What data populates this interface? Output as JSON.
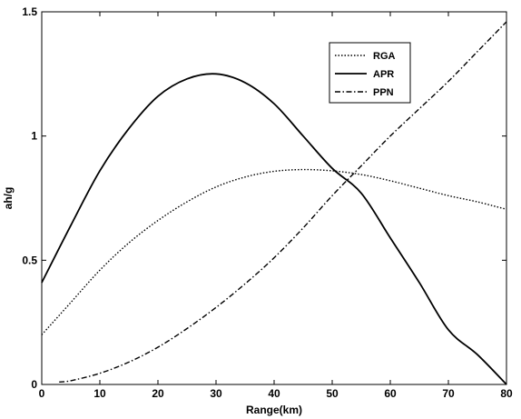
{
  "chart_data": {
    "type": "line",
    "title": "",
    "xlabel": "Range(km)",
    "ylabel": "ah/g",
    "xlim": [
      0,
      80
    ],
    "ylim": [
      0,
      1.5
    ],
    "xticks": [
      "0",
      "10",
      "20",
      "30",
      "40",
      "50",
      "60",
      "70",
      "80"
    ],
    "yticks": [
      "0",
      "0.5",
      "1",
      "1.5"
    ],
    "grid": false,
    "legend_position": "top-right",
    "series": [
      {
        "name": "RGA",
        "style": "dotted",
        "color": "#000000",
        "x": [
          0,
          5,
          10,
          15,
          20,
          25,
          30,
          35,
          40,
          45,
          50,
          55,
          60,
          65,
          70,
          75,
          80
        ],
        "y": [
          0.2,
          0.33,
          0.46,
          0.57,
          0.66,
          0.735,
          0.795,
          0.835,
          0.858,
          0.865,
          0.86,
          0.845,
          0.82,
          0.79,
          0.76,
          0.735,
          0.705
        ]
      },
      {
        "name": "APR",
        "style": "solid",
        "color": "#000000",
        "x": [
          0,
          5,
          10,
          15,
          20,
          25,
          30,
          35,
          40,
          45,
          50,
          55,
          60,
          65,
          70,
          75,
          80
        ],
        "y": [
          0.41,
          0.64,
          0.86,
          1.03,
          1.16,
          1.23,
          1.25,
          1.215,
          1.13,
          1.0,
          0.87,
          0.77,
          0.59,
          0.41,
          0.22,
          0.12,
          0.0
        ]
      },
      {
        "name": "PPN",
        "style": "dashdot",
        "color": "#000000",
        "x": [
          3,
          5,
          10,
          15,
          20,
          25,
          30,
          35,
          40,
          45,
          50,
          55,
          60,
          65,
          70,
          75,
          80
        ],
        "y": [
          0.01,
          0.015,
          0.045,
          0.09,
          0.15,
          0.225,
          0.31,
          0.405,
          0.51,
          0.63,
          0.76,
          0.88,
          1.0,
          1.11,
          1.22,
          1.34,
          1.46
        ]
      }
    ]
  }
}
